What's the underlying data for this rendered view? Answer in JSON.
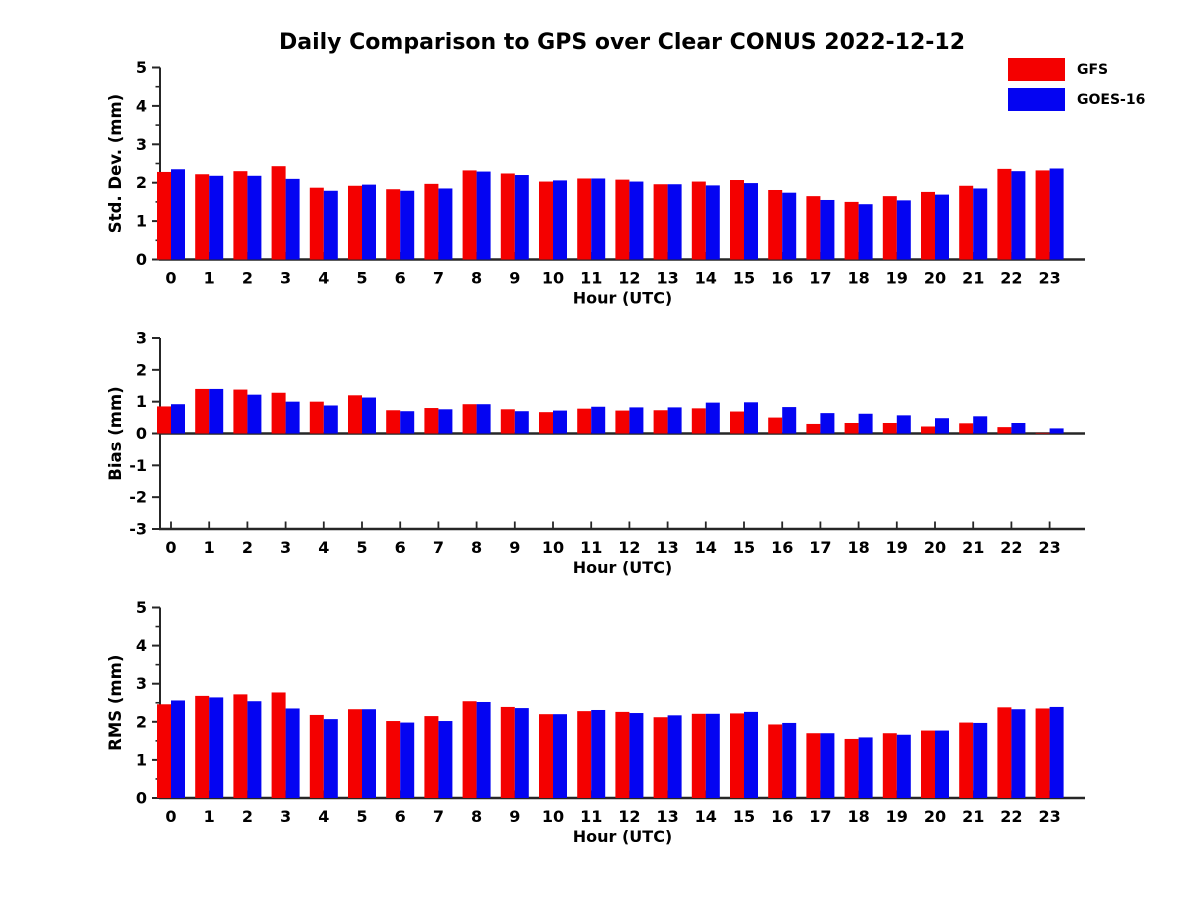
{
  "figure": {
    "title": "Daily Comparison to GPS over Clear CONUS 2022-12-12",
    "background": "#ffffff",
    "axis_color": "#262626",
    "text_color": "#000000"
  },
  "legend": {
    "position": "top-right",
    "entries": [
      {
        "label": "GFS",
        "color": "#f40000"
      },
      {
        "label": "GOES-16",
        "color": "#0404f2"
      }
    ]
  },
  "chart_data": [
    {
      "id": "stddev",
      "type": "bar",
      "title": "",
      "ylabel": "Std. Dev. (mm)",
      "xlabel": "Hour (UTC)",
      "ylim": [
        0,
        5
      ],
      "yticks": [
        0,
        1,
        2,
        3,
        4,
        5
      ],
      "minor_tick_step": 0.5,
      "grid": false,
      "categories": [
        "0",
        "1",
        "2",
        "3",
        "4",
        "5",
        "6",
        "7",
        "8",
        "9",
        "10",
        "11",
        "12",
        "13",
        "14",
        "15",
        "16",
        "17",
        "18",
        "19",
        "20",
        "21",
        "22",
        "23"
      ],
      "series": [
        {
          "name": "GFS",
          "color": "#f40000",
          "values": [
            2.28,
            2.22,
            2.3,
            2.43,
            1.87,
            1.92,
            1.83,
            1.97,
            2.32,
            2.24,
            2.03,
            2.11,
            2.08,
            1.96,
            2.03,
            2.07,
            1.81,
            1.65,
            1.5,
            1.65,
            1.76,
            1.92,
            2.36,
            2.32
          ]
        },
        {
          "name": "GOES-16",
          "color": "#0404f2",
          "values": [
            2.35,
            2.18,
            2.18,
            2.1,
            1.79,
            1.95,
            1.79,
            1.85,
            2.29,
            2.2,
            2.06,
            2.11,
            2.03,
            1.96,
            1.93,
            1.99,
            1.74,
            1.55,
            1.44,
            1.54,
            1.69,
            1.85,
            2.3,
            2.37
          ]
        }
      ]
    },
    {
      "id": "bias",
      "type": "bar",
      "title": "",
      "ylabel": "Bias (mm)",
      "xlabel": "Hour (UTC)",
      "ylim": [
        -3,
        3
      ],
      "yticks": [
        -3,
        -2,
        -1,
        0,
        1,
        2,
        3
      ],
      "minor_tick_step": null,
      "grid": false,
      "categories": [
        "0",
        "1",
        "2",
        "3",
        "4",
        "5",
        "6",
        "7",
        "8",
        "9",
        "10",
        "11",
        "12",
        "13",
        "14",
        "15",
        "16",
        "17",
        "18",
        "19",
        "20",
        "21",
        "22",
        "23"
      ],
      "series": [
        {
          "name": "GFS",
          "color": "#f40000",
          "values": [
            0.85,
            1.4,
            1.38,
            1.28,
            1.0,
            1.2,
            0.73,
            0.8,
            0.92,
            0.76,
            0.67,
            0.78,
            0.72,
            0.73,
            0.79,
            0.69,
            0.5,
            0.3,
            0.33,
            0.33,
            0.22,
            0.32,
            0.2,
            0.02
          ]
        },
        {
          "name": "GOES-16",
          "color": "#0404f2",
          "values": [
            0.92,
            1.4,
            1.22,
            1.0,
            0.88,
            1.13,
            0.7,
            0.76,
            0.92,
            0.7,
            0.72,
            0.84,
            0.82,
            0.82,
            0.97,
            0.98,
            0.83,
            0.64,
            0.62,
            0.57,
            0.48,
            0.54,
            0.33,
            0.16
          ]
        }
      ]
    },
    {
      "id": "rms",
      "type": "bar",
      "title": "",
      "ylabel": "RMS (mm)",
      "xlabel": "Hour (UTC)",
      "ylim": [
        0,
        5
      ],
      "yticks": [
        0,
        1,
        2,
        3,
        4,
        5
      ],
      "minor_tick_step": 0.5,
      "grid": false,
      "categories": [
        "0",
        "1",
        "2",
        "3",
        "4",
        "5",
        "6",
        "7",
        "8",
        "9",
        "10",
        "11",
        "12",
        "13",
        "14",
        "15",
        "16",
        "17",
        "18",
        "19",
        "20",
        "21",
        "22",
        "23"
      ],
      "series": [
        {
          "name": "GFS",
          "color": "#f40000",
          "values": [
            2.46,
            2.68,
            2.72,
            2.77,
            2.18,
            2.33,
            2.02,
            2.15,
            2.54,
            2.39,
            2.2,
            2.28,
            2.26,
            2.12,
            2.21,
            2.22,
            1.93,
            1.7,
            1.55,
            1.7,
            1.77,
            1.98,
            2.38,
            2.35
          ]
        },
        {
          "name": "GOES-16",
          "color": "#0404f2",
          "values": [
            2.56,
            2.64,
            2.54,
            2.35,
            2.07,
            2.33,
            1.98,
            2.02,
            2.52,
            2.36,
            2.2,
            2.31,
            2.23,
            2.17,
            2.21,
            2.26,
            1.97,
            1.7,
            1.59,
            1.66,
            1.77,
            1.97,
            2.33,
            2.39
          ]
        }
      ]
    }
  ]
}
